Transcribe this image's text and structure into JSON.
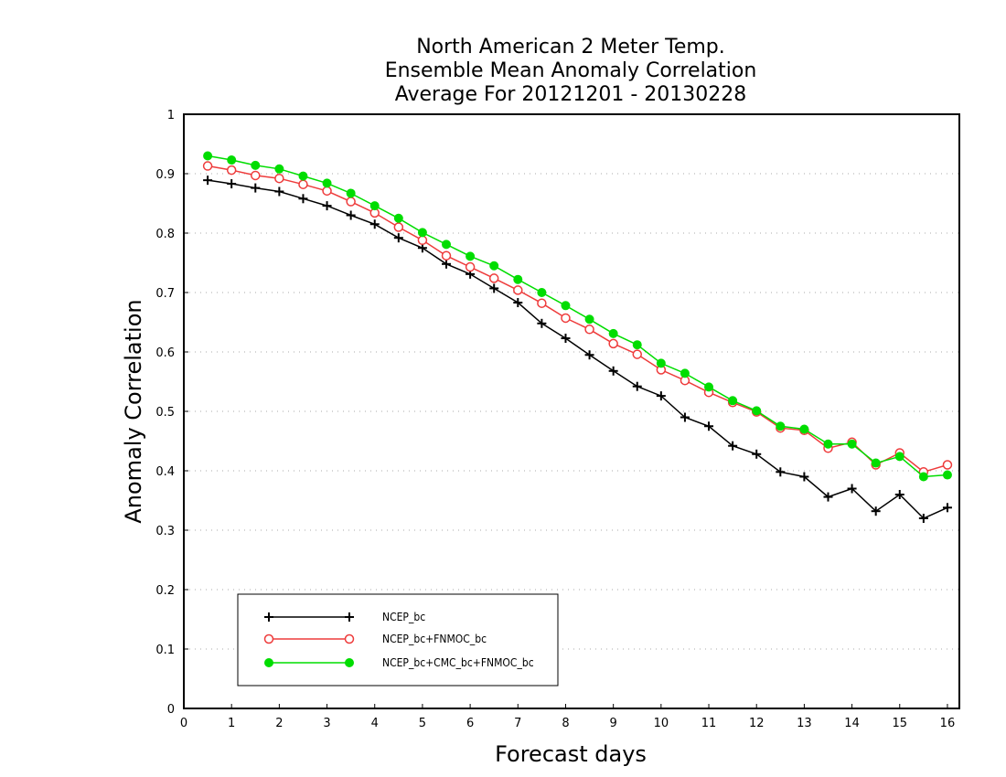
{
  "chart_data": {
    "type": "line",
    "title_lines": [
      "North American 2 Meter Temp.",
      "Ensemble Mean Anomaly Correlation",
      "Average For 20121201 - 20130228"
    ],
    "xlabel": "Forecast days",
    "ylabel": "Anomaly Correlation",
    "xlim": [
      0,
      16.25
    ],
    "ylim": [
      0,
      1
    ],
    "xticks": [
      0,
      1,
      2,
      3,
      4,
      5,
      6,
      7,
      8,
      9,
      10,
      11,
      12,
      13,
      14,
      15,
      16
    ],
    "yticks": [
      0,
      0.1,
      0.2,
      0.3,
      0.4,
      0.5,
      0.6,
      0.7,
      0.8,
      0.9,
      1
    ],
    "ytick_labels": [
      "0",
      "0.1",
      "0.2",
      "0.3",
      "0.4",
      "0.5",
      "0.6",
      "0.7",
      "0.8",
      "0.9",
      "1"
    ],
    "grid": "horizontal dotted",
    "legend_position": "bottom-left",
    "x": [
      0.5,
      1,
      1.5,
      2,
      2.5,
      3,
      3.5,
      4,
      4.5,
      5,
      5.5,
      6,
      6.5,
      7,
      7.5,
      8,
      8.5,
      9,
      9.5,
      10,
      10.5,
      11,
      11.5,
      12,
      12.5,
      13,
      13.5,
      14,
      14.5,
      15,
      15.5,
      16
    ],
    "series": [
      {
        "name": "NCEP_bc",
        "color": "#000000",
        "marker": "plus",
        "values": [
          0.889,
          0.883,
          0.876,
          0.87,
          0.858,
          0.846,
          0.83,
          0.815,
          0.792,
          0.775,
          0.748,
          0.731,
          0.707,
          0.683,
          0.648,
          0.623,
          0.595,
          0.568,
          0.542,
          0.526,
          0.49,
          0.475,
          0.442,
          0.428,
          0.398,
          0.39,
          0.356,
          0.37,
          0.332,
          0.36,
          0.32,
          0.338
        ]
      },
      {
        "name": "NCEP_bc+FNMOC_bc",
        "color": "#ee3b3b",
        "marker": "open-circle",
        "values": [
          0.913,
          0.906,
          0.897,
          0.892,
          0.882,
          0.871,
          0.853,
          0.834,
          0.81,
          0.788,
          0.762,
          0.743,
          0.724,
          0.704,
          0.682,
          0.657,
          0.638,
          0.614,
          0.596,
          0.57,
          0.552,
          0.532,
          0.515,
          0.499,
          0.472,
          0.468,
          0.438,
          0.448,
          0.41,
          0.43,
          0.398,
          0.41
        ]
      },
      {
        "name": "NCEP_bc+CMC_bc+FNMOC_bc",
        "color": "#00dd00",
        "marker": "filled-circle",
        "values": [
          0.93,
          0.923,
          0.914,
          0.908,
          0.896,
          0.884,
          0.867,
          0.846,
          0.825,
          0.801,
          0.781,
          0.761,
          0.745,
          0.722,
          0.7,
          0.678,
          0.655,
          0.631,
          0.612,
          0.581,
          0.564,
          0.541,
          0.518,
          0.501,
          0.475,
          0.47,
          0.445,
          0.445,
          0.413,
          0.424,
          0.39,
          0.393
        ]
      }
    ]
  }
}
